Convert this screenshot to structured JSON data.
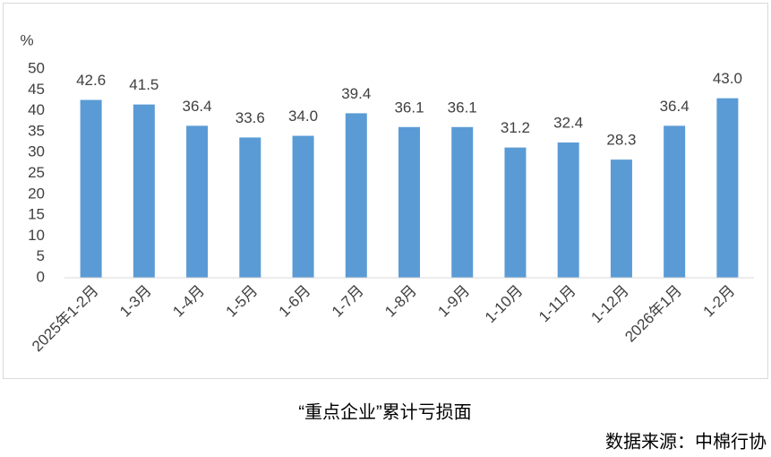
{
  "chart_data": {
    "type": "bar",
    "title": "“重点企业”累计亏损面",
    "source": "数据来源：中棉行协",
    "y_label": "%",
    "categories": [
      "2025年1-2月",
      "1-3月",
      "1-4月",
      "1-5月",
      "1-6月",
      "1-7月",
      "1-8月",
      "1-9月",
      "1-10月",
      "1-11月",
      "1-12月",
      "2026年1月",
      "1-2月"
    ],
    "values": [
      42.6,
      41.5,
      36.4,
      33.6,
      34.0,
      39.4,
      36.1,
      36.1,
      31.2,
      32.4,
      28.3,
      36.4,
      43.0
    ],
    "value_labels": [
      "42.6",
      "41.5",
      "36.4",
      "33.6",
      "34.0",
      "39.4",
      "36.1",
      "36.1",
      "31.2",
      "32.4",
      "28.3",
      "36.4",
      "43.0"
    ],
    "color": "#5b9bd5",
    "ylim": [
      0,
      50
    ],
    "yticks": [
      0,
      5,
      10,
      15,
      20,
      25,
      30,
      35,
      40,
      45,
      50
    ],
    "grid": false
  }
}
